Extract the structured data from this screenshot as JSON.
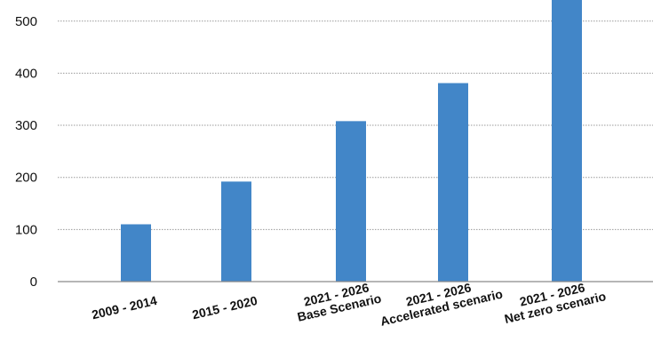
{
  "chart_data": {
    "type": "bar",
    "title": "",
    "xlabel": "",
    "ylabel": "",
    "categories": [
      [
        "2009 - 2014"
      ],
      [
        "2015 - 2020"
      ],
      [
        "2021 - 2026",
        "Base Scenario"
      ],
      [
        "2021 - 2026",
        "Accelerated scenario"
      ],
      [
        "2021 - 2026",
        "Net zero scenario"
      ]
    ],
    "values": [
      110,
      192,
      308,
      381,
      560
    ],
    "ylim": [
      0,
      540
    ],
    "yticks": [
      "0",
      "100",
      "200",
      "300",
      "400",
      "500"
    ],
    "ytick_values": [
      0,
      100,
      200,
      300,
      400,
      500
    ],
    "grid": true,
    "legend": "none",
    "bar_color": "#4286c8"
  }
}
